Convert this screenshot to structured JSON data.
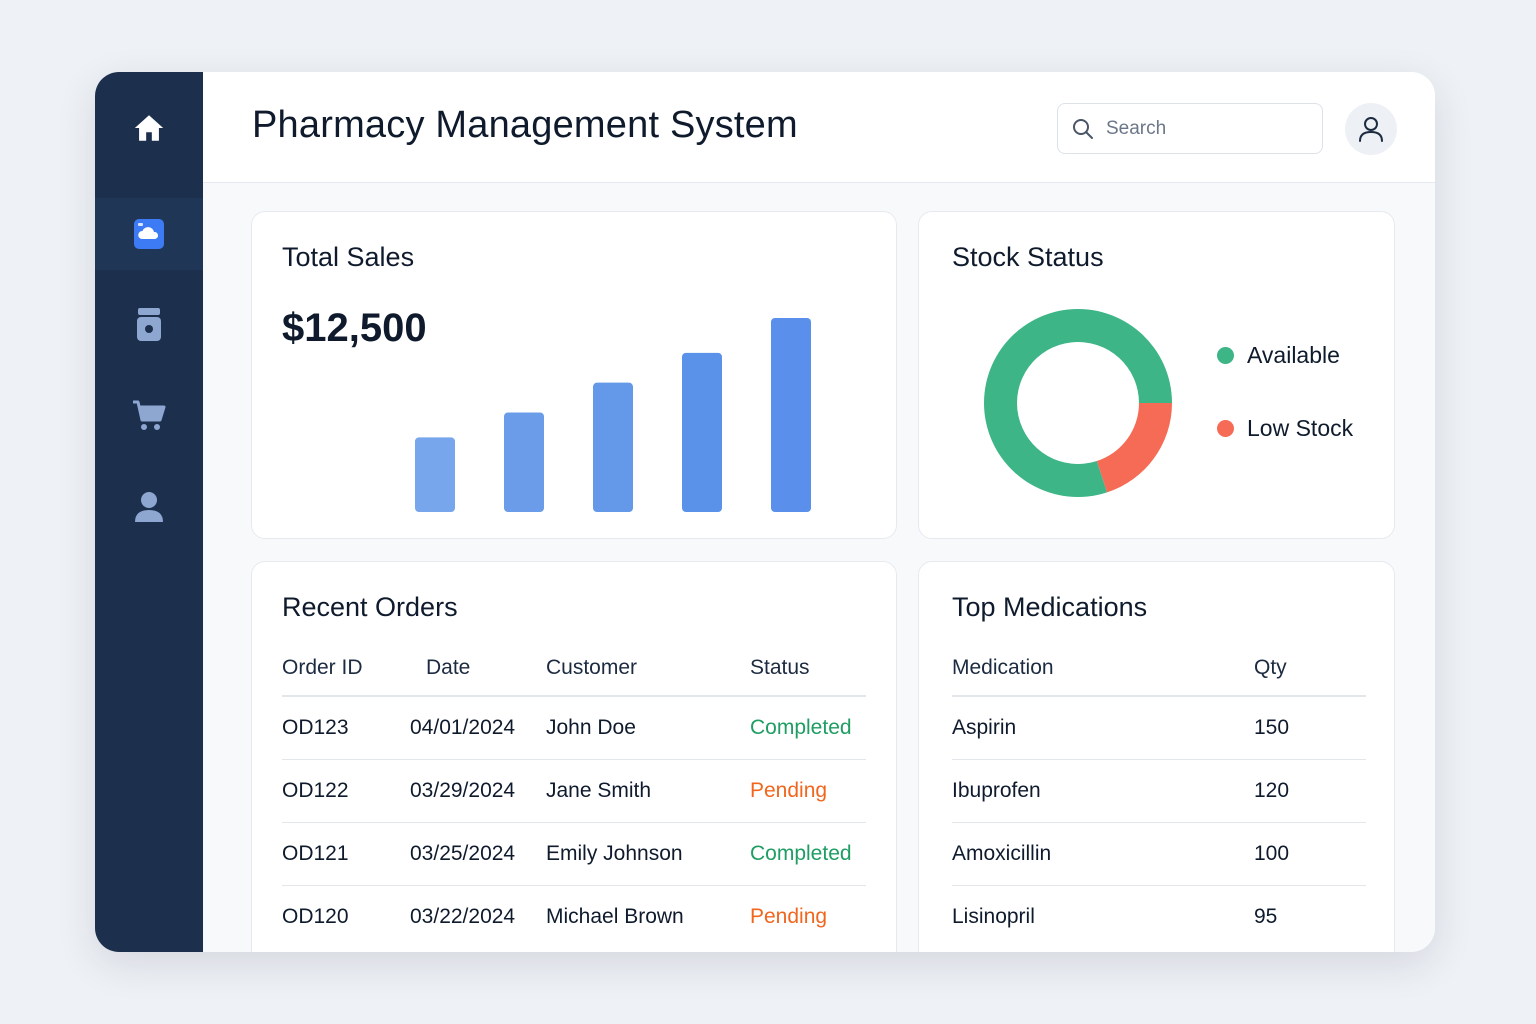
{
  "app": {
    "title": "Pharmacy Management System"
  },
  "sidebar": {
    "items": [
      {
        "icon": "home-icon",
        "active": false
      },
      {
        "icon": "dashboard-icon",
        "active": true
      },
      {
        "icon": "medicine-bottle-icon",
        "active": false
      },
      {
        "icon": "cart-icon",
        "active": false
      },
      {
        "icon": "user-icon",
        "active": false
      }
    ]
  },
  "search": {
    "placeholder": "Search",
    "value": ""
  },
  "colors": {
    "sidebar_bg": "#1c2f4d",
    "accent_blue": "#3d7bf5",
    "bar_blue": "#5b8fe8",
    "available_green": "#3db587",
    "low_stock_red": "#f56b55",
    "completed_green": "#1f9d63",
    "pending_orange": "#f0661f"
  },
  "sales": {
    "title": "Total Sales",
    "value": "$12,500",
    "chart_data": {
      "type": "bar",
      "values": [
        30,
        40,
        52,
        64,
        78
      ],
      "title": "",
      "xlabel": "",
      "ylabel": "",
      "grid": false
    }
  },
  "stock": {
    "title": "Stock Status",
    "chart_data": {
      "type": "pie",
      "categories": [
        "Available",
        "Low Stock"
      ],
      "values": [
        80,
        20
      ],
      "colors": [
        "#3db587",
        "#f56b55"
      ],
      "legend_position": "right"
    },
    "legend": [
      {
        "label": "Available",
        "color": "#3db587"
      },
      {
        "label": "Low Stock",
        "color": "#f56b55"
      }
    ]
  },
  "orders": {
    "title": "Recent Orders",
    "columns": [
      "Order ID",
      "Date",
      "Customer",
      "Status"
    ],
    "rows": [
      {
        "id": "OD123",
        "date": "04/01/2024",
        "customer": "John Doe",
        "status": "Completed"
      },
      {
        "id": "OD122",
        "date": "03/29/2024",
        "customer": "Jane Smith",
        "status": "Pending"
      },
      {
        "id": "OD121",
        "date": "03/25/2024",
        "customer": "Emily Johnson",
        "status": "Completed"
      },
      {
        "id": "OD120",
        "date": "03/22/2024",
        "customer": "Michael Brown",
        "status": "Pending"
      }
    ]
  },
  "medications": {
    "title": "Top Medications",
    "columns": [
      "Medication",
      "Qty"
    ],
    "rows": [
      {
        "name": "Aspirin",
        "qty": "150"
      },
      {
        "name": "Ibuprofen",
        "qty": "120"
      },
      {
        "name": "Amoxicillin",
        "qty": "100"
      },
      {
        "name": "Lisinopril",
        "qty": "95"
      }
    ]
  }
}
